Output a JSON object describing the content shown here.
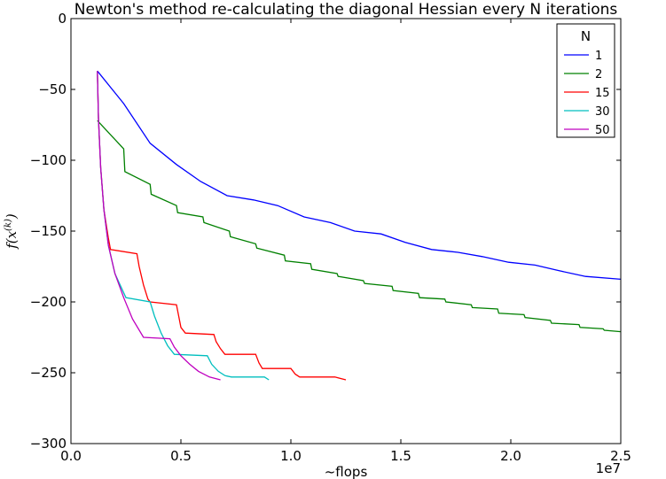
{
  "chart_data": {
    "type": "line",
    "title": "Newton's method re-calculating the diagonal Hessian every N iterations",
    "xlabel": "~flops",
    "ylabel": "f(x^(k))",
    "ylabel_main": "f(x",
    "ylabel_sup": "(k)",
    "ylabel_close": ")",
    "x_offset_label": "1e7",
    "xlim": [
      0,
      2.5
    ],
    "ylim": [
      -300,
      0
    ],
    "xticks": [
      0.0,
      0.5,
      1.0,
      1.5,
      2.0,
      2.5
    ],
    "xtick_labels": [
      "0.0",
      "0.5",
      "1.0",
      "1.5",
      "2.0",
      "2.5"
    ],
    "yticks": [
      0,
      -50,
      -100,
      -150,
      -200,
      -250,
      -300
    ],
    "ytick_labels": [
      "0",
      "−50",
      "−100",
      "−150",
      "−200",
      "−250",
      "−300"
    ],
    "legend": {
      "title": "N",
      "placement": "top-right"
    },
    "grid": false,
    "series": [
      {
        "name": "1",
        "color": "#0000ff",
        "points": [
          [
            0.12,
            -37
          ],
          [
            0.24,
            -60
          ],
          [
            0.36,
            -88
          ],
          [
            0.48,
            -103
          ],
          [
            0.59,
            -115
          ],
          [
            0.71,
            -125
          ],
          [
            0.83,
            -128
          ],
          [
            0.94,
            -132
          ],
          [
            1.06,
            -140
          ],
          [
            1.18,
            -144
          ],
          [
            1.29,
            -150
          ],
          [
            1.41,
            -152
          ],
          [
            1.52,
            -158
          ],
          [
            1.64,
            -163
          ],
          [
            1.76,
            -165
          ],
          [
            1.87,
            -168
          ],
          [
            1.99,
            -172
          ],
          [
            2.11,
            -174
          ],
          [
            2.22,
            -178
          ],
          [
            2.34,
            -182
          ],
          [
            2.5,
            -184
          ]
        ]
      },
      {
        "name": "2",
        "color": "#008000",
        "points": [
          [
            0.12,
            -72
          ],
          [
            0.24,
            -92
          ],
          [
            0.245,
            -108
          ],
          [
            0.36,
            -117
          ],
          [
            0.365,
            -124
          ],
          [
            0.48,
            -132
          ],
          [
            0.485,
            -137
          ],
          [
            0.6,
            -140
          ],
          [
            0.605,
            -144
          ],
          [
            0.72,
            -150
          ],
          [
            0.725,
            -154
          ],
          [
            0.84,
            -159
          ],
          [
            0.845,
            -162
          ],
          [
            0.97,
            -167
          ],
          [
            0.975,
            -171
          ],
          [
            1.09,
            -173
          ],
          [
            1.095,
            -177
          ],
          [
            1.21,
            -180
          ],
          [
            1.215,
            -182
          ],
          [
            1.33,
            -185
          ],
          [
            1.335,
            -187
          ],
          [
            1.46,
            -189
          ],
          [
            1.465,
            -192
          ],
          [
            1.58,
            -194
          ],
          [
            1.585,
            -197
          ],
          [
            1.7,
            -198
          ],
          [
            1.705,
            -200
          ],
          [
            1.82,
            -202
          ],
          [
            1.825,
            -204
          ],
          [
            1.94,
            -205
          ],
          [
            1.945,
            -208
          ],
          [
            2.06,
            -209
          ],
          [
            2.065,
            -211
          ],
          [
            2.18,
            -213
          ],
          [
            2.185,
            -215
          ],
          [
            2.31,
            -216
          ],
          [
            2.315,
            -218
          ],
          [
            2.42,
            -219
          ],
          [
            2.425,
            -220
          ],
          [
            2.5,
            -221
          ]
        ]
      },
      {
        "name": "15",
        "color": "#ff0000",
        "points": [
          [
            0.12,
            -37
          ],
          [
            0.125,
            -70
          ],
          [
            0.135,
            -105
          ],
          [
            0.15,
            -135
          ],
          [
            0.17,
            -155
          ],
          [
            0.18,
            -163
          ],
          [
            0.3,
            -166
          ],
          [
            0.31,
            -175
          ],
          [
            0.33,
            -188
          ],
          [
            0.35,
            -198
          ],
          [
            0.36,
            -200
          ],
          [
            0.48,
            -202
          ],
          [
            0.49,
            -210
          ],
          [
            0.5,
            -218
          ],
          [
            0.52,
            -222
          ],
          [
            0.65,
            -223
          ],
          [
            0.66,
            -228
          ],
          [
            0.68,
            -233
          ],
          [
            0.7,
            -237
          ],
          [
            0.84,
            -237
          ],
          [
            0.855,
            -243
          ],
          [
            0.87,
            -247
          ],
          [
            1.0,
            -247
          ],
          [
            1.02,
            -251
          ],
          [
            1.04,
            -253
          ],
          [
            1.2,
            -253
          ],
          [
            1.25,
            -255
          ]
        ]
      },
      {
        "name": "30",
        "color": "#00bfbf",
        "points": [
          [
            0.12,
            -37
          ],
          [
            0.125,
            -70
          ],
          [
            0.135,
            -105
          ],
          [
            0.15,
            -135
          ],
          [
            0.17,
            -160
          ],
          [
            0.2,
            -180
          ],
          [
            0.25,
            -197
          ],
          [
            0.36,
            -200
          ],
          [
            0.38,
            -210
          ],
          [
            0.41,
            -222
          ],
          [
            0.44,
            -231
          ],
          [
            0.47,
            -237
          ],
          [
            0.62,
            -238
          ],
          [
            0.64,
            -244
          ],
          [
            0.67,
            -249
          ],
          [
            0.7,
            -252
          ],
          [
            0.73,
            -253
          ],
          [
            0.88,
            -253
          ],
          [
            0.9,
            -255
          ]
        ]
      },
      {
        "name": "50",
        "color": "#bf00bf",
        "points": [
          [
            0.12,
            -37
          ],
          [
            0.125,
            -70
          ],
          [
            0.135,
            -105
          ],
          [
            0.15,
            -135
          ],
          [
            0.17,
            -160
          ],
          [
            0.2,
            -180
          ],
          [
            0.24,
            -197
          ],
          [
            0.28,
            -212
          ],
          [
            0.33,
            -225
          ],
          [
            0.45,
            -226
          ],
          [
            0.47,
            -232
          ],
          [
            0.5,
            -238
          ],
          [
            0.54,
            -244
          ],
          [
            0.58,
            -249
          ],
          [
            0.63,
            -253
          ],
          [
            0.68,
            -255
          ]
        ]
      }
    ]
  }
}
